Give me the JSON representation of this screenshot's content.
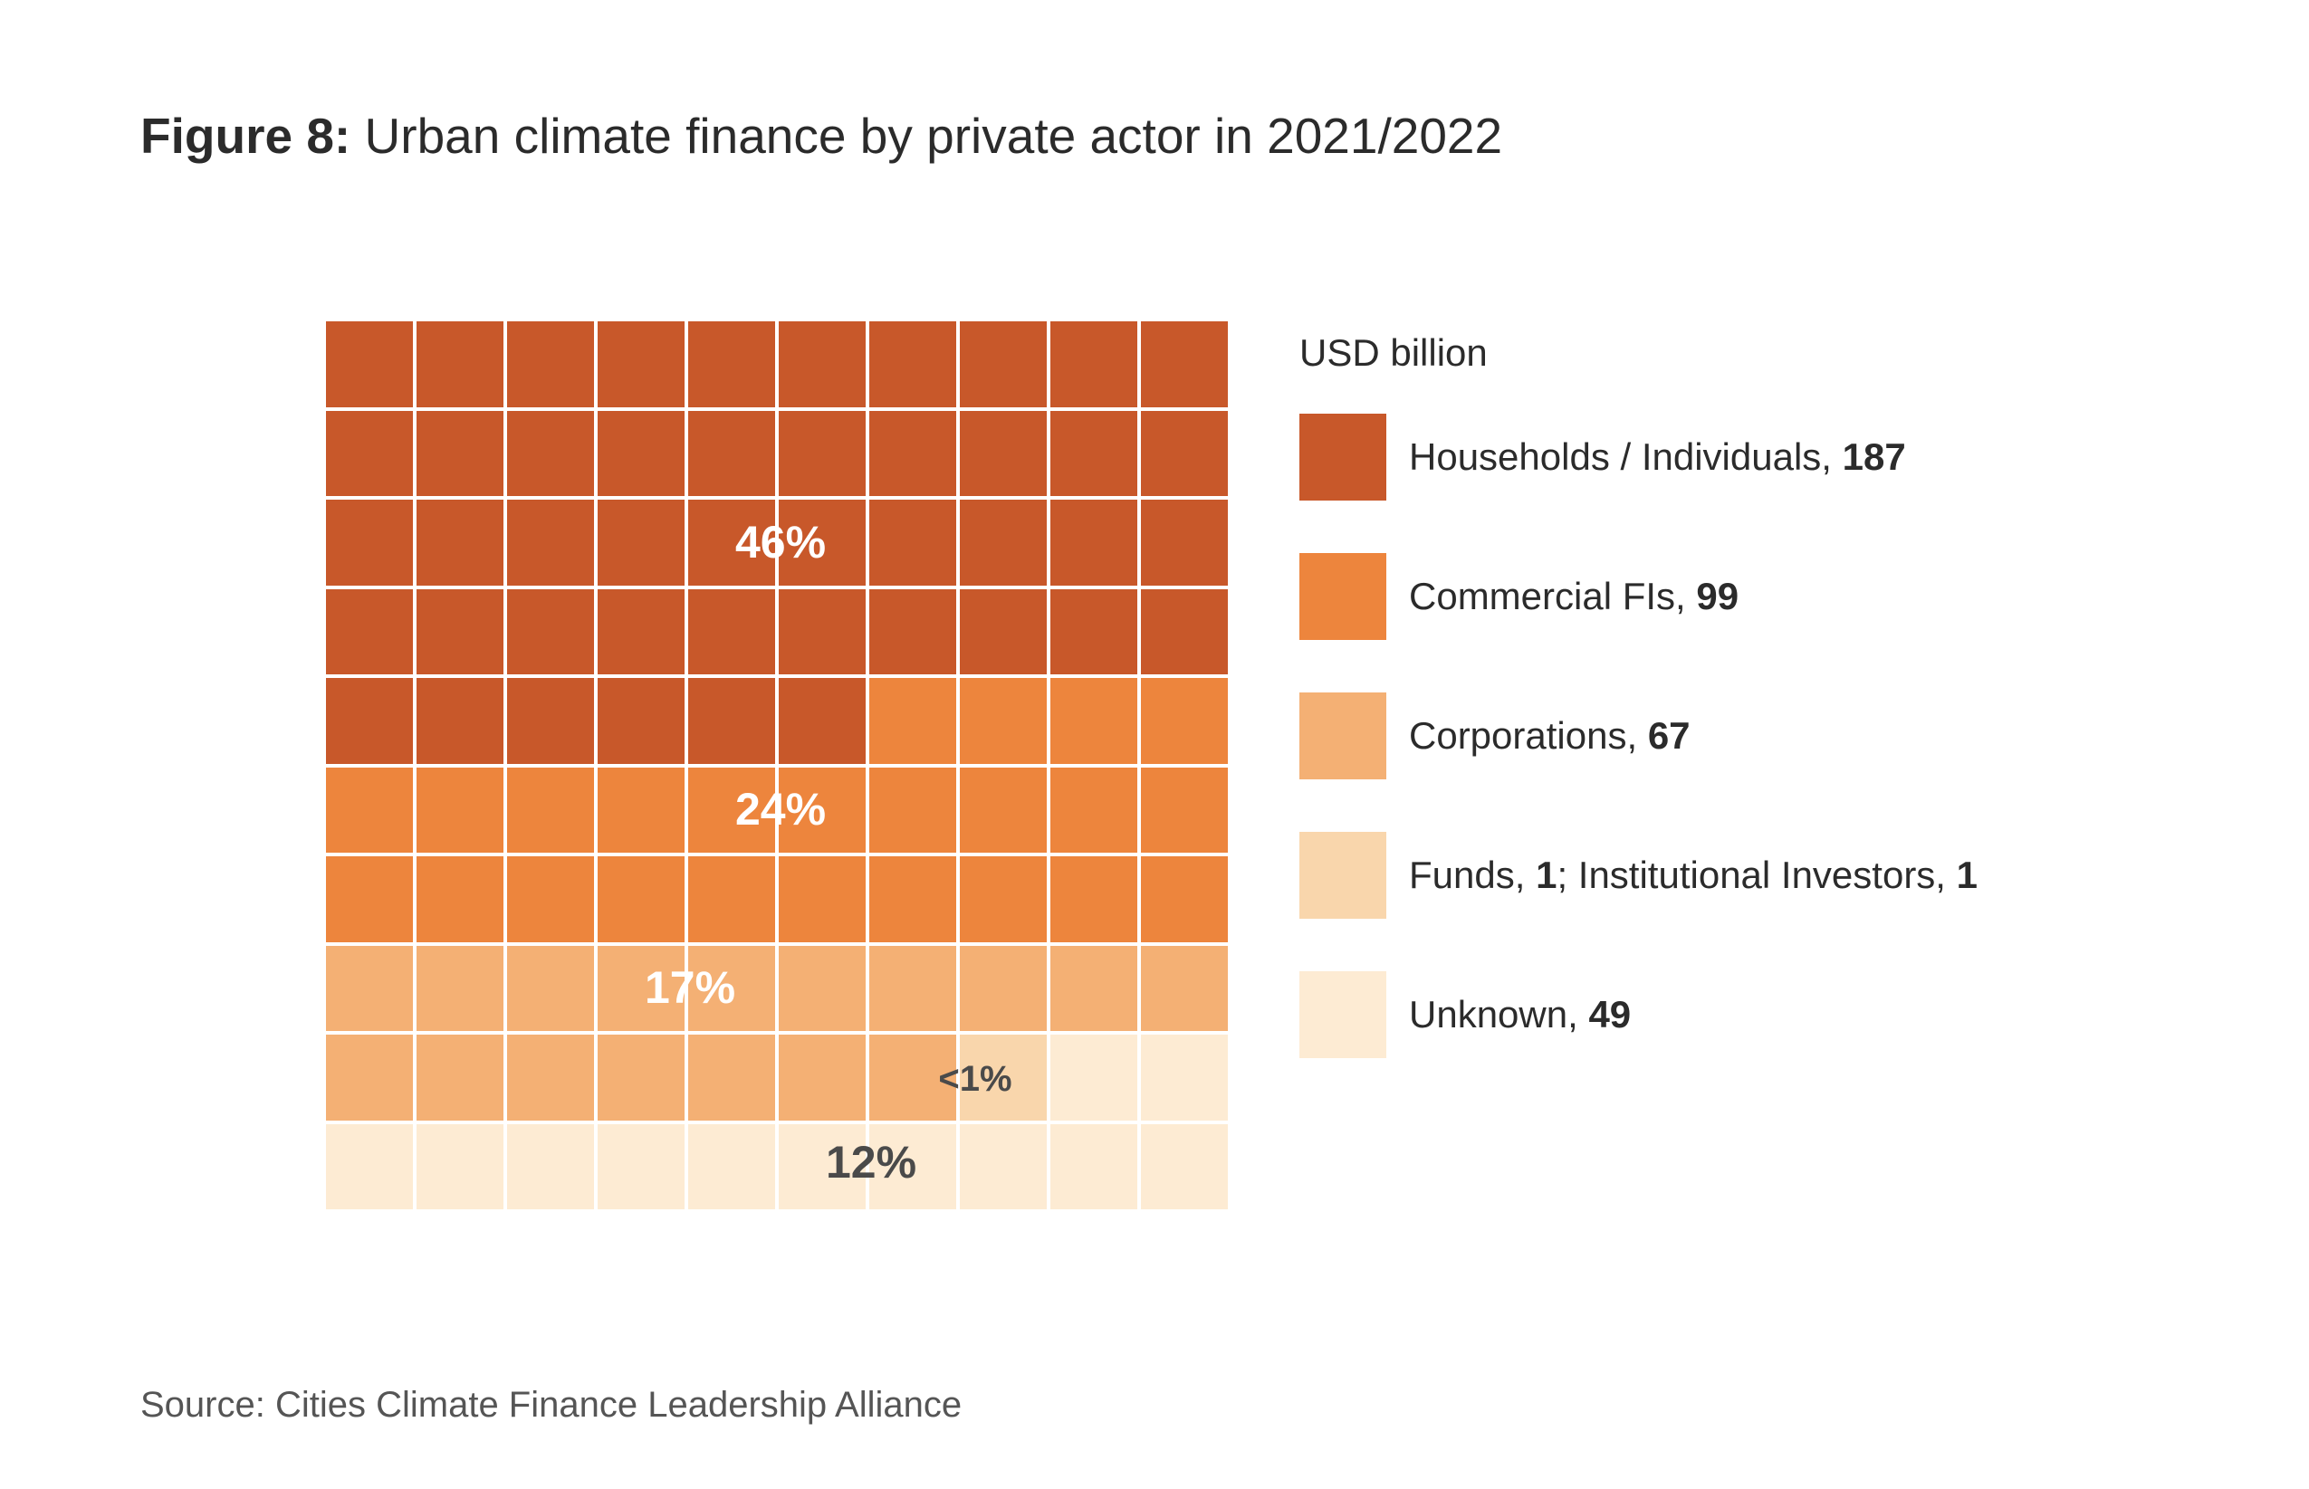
{
  "title": {
    "prefix": "Figure 8:",
    "text": " Urban climate finance by private actor in 2021/2022"
  },
  "source": "Source: Cities Climate Finance Leadership Alliance",
  "chart_data": {
    "type": "waffle",
    "grid": [
      10,
      10
    ],
    "legend_title": "USD billion",
    "legend_placement": "right",
    "categories": [
      {
        "name": "Households / Individuals",
        "sep": ", ",
        "value": "187",
        "squares": 46,
        "label": "46%",
        "color": "#c8582a"
      },
      {
        "name": "Commercial FIs",
        "sep": ", ",
        "value": "99",
        "squares": 24,
        "label": "24%",
        "color": "#ed853d"
      },
      {
        "name": "Corporations",
        "sep": ", ",
        "value": "67",
        "squares": 17,
        "label": "17%",
        "color": "#f4b074"
      },
      {
        "name": "Funds",
        "sep": ", ",
        "value": "1",
        "name2": "; Institutional Investors, ",
        "value2": "1",
        "squares": 1,
        "label": "<1%",
        "color": "#f9d6ac"
      },
      {
        "name": "Unknown",
        "sep": ", ",
        "value": "49",
        "squares": 12,
        "label": "12%",
        "color": "#fdebd3"
      }
    ]
  }
}
